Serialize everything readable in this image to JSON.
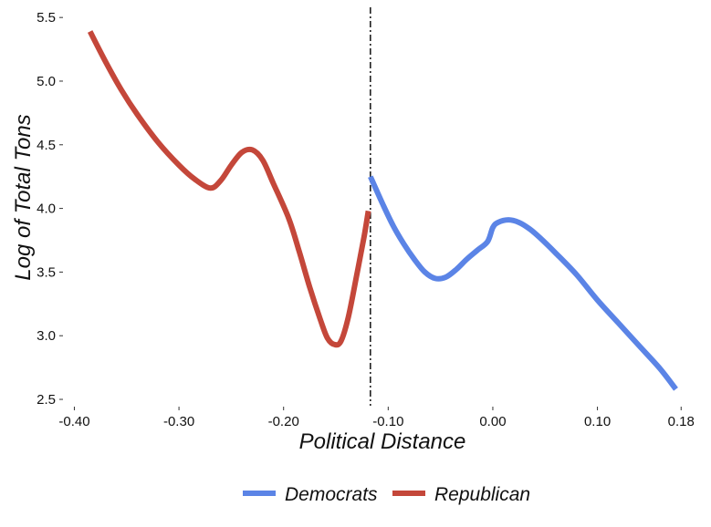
{
  "chart_data": {
    "type": "line",
    "title": "",
    "xlabel": "Political Distance",
    "ylabel": "Log of Total Tons",
    "xlim": [
      -0.41,
      0.185
    ],
    "ylim": [
      2.45,
      5.58
    ],
    "x_ticks": [
      -0.4,
      -0.3,
      -0.2,
      -0.1,
      0.0,
      0.1,
      0.18
    ],
    "x_tick_labels": [
      "-0.40",
      "-0.30",
      "-0.20",
      "-0.10",
      "0.00",
      "0.10",
      "0.18"
    ],
    "y_ticks": [
      2.5,
      3.0,
      3.5,
      4.0,
      4.5,
      5.0,
      5.5
    ],
    "y_tick_labels": [
      "2.5",
      "3.0",
      "3.5",
      "4.0",
      "4.5",
      "5.0",
      "5.5"
    ],
    "grid": false,
    "legend_position": "bottom",
    "threshold_line": {
      "x": -0.117,
      "style": "dot-dash"
    },
    "series": [
      {
        "name": "Democrats",
        "color": "#5b84e6",
        "points": [
          [
            -0.117,
            4.25
          ],
          [
            -0.105,
            4.03
          ],
          [
            -0.095,
            3.86
          ],
          [
            -0.085,
            3.72
          ],
          [
            -0.075,
            3.6
          ],
          [
            -0.065,
            3.5
          ],
          [
            -0.055,
            3.45
          ],
          [
            -0.045,
            3.46
          ],
          [
            -0.035,
            3.52
          ],
          [
            -0.025,
            3.6
          ],
          [
            -0.015,
            3.67
          ],
          [
            -0.005,
            3.74
          ],
          [
            0.0,
            3.85
          ],
          [
            0.005,
            3.89
          ],
          [
            0.015,
            3.91
          ],
          [
            0.025,
            3.89
          ],
          [
            0.035,
            3.84
          ],
          [
            0.045,
            3.77
          ],
          [
            0.06,
            3.65
          ],
          [
            0.08,
            3.48
          ],
          [
            0.1,
            3.28
          ],
          [
            0.12,
            3.1
          ],
          [
            0.14,
            2.92
          ],
          [
            0.16,
            2.74
          ],
          [
            0.175,
            2.58
          ]
        ]
      },
      {
        "name": "Republican",
        "color": "#c4473a",
        "points": [
          [
            -0.385,
            5.39
          ],
          [
            -0.37,
            5.15
          ],
          [
            -0.355,
            4.93
          ],
          [
            -0.34,
            4.74
          ],
          [
            -0.32,
            4.52
          ],
          [
            -0.3,
            4.34
          ],
          [
            -0.285,
            4.23
          ],
          [
            -0.27,
            4.16
          ],
          [
            -0.26,
            4.22
          ],
          [
            -0.25,
            4.34
          ],
          [
            -0.24,
            4.44
          ],
          [
            -0.23,
            4.46
          ],
          [
            -0.22,
            4.38
          ],
          [
            -0.21,
            4.2
          ],
          [
            -0.195,
            3.92
          ],
          [
            -0.185,
            3.66
          ],
          [
            -0.175,
            3.38
          ],
          [
            -0.165,
            3.13
          ],
          [
            -0.158,
            2.98
          ],
          [
            -0.151,
            2.93
          ],
          [
            -0.145,
            2.96
          ],
          [
            -0.138,
            3.15
          ],
          [
            -0.13,
            3.48
          ],
          [
            -0.123,
            3.78
          ],
          [
            -0.119,
            3.98
          ]
        ]
      }
    ]
  }
}
